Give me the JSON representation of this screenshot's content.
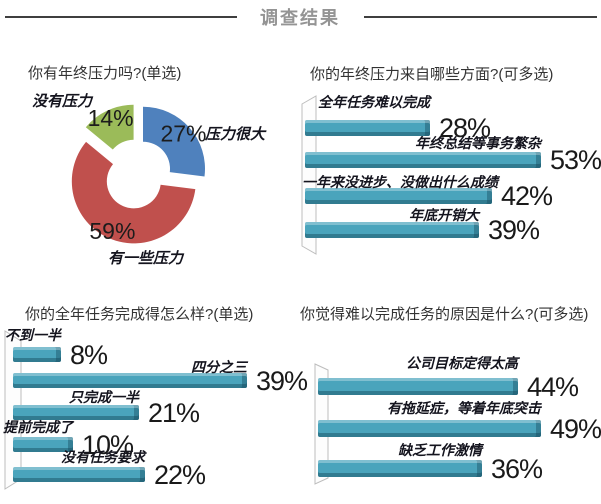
{
  "header": {
    "title": "调查结果"
  },
  "chart_data": [
    {
      "id": "q1",
      "type": "pie",
      "donut": true,
      "title": "你有年终压力吗?(单选)",
      "unit": "%",
      "legend_position": "around",
      "slices": [
        {
          "label": "压力很大",
          "value": 27,
          "color": "#4F81BD"
        },
        {
          "label": "有一些压力",
          "value": 59,
          "color": "#C0504D"
        },
        {
          "label": "没有压力",
          "value": 14,
          "color": "#9BBB59"
        }
      ]
    },
    {
      "id": "q2",
      "type": "bar",
      "orientation": "horizontal",
      "title": "你的年终压力来自哪些方面?(可多选)",
      "unit": "%",
      "bar_color": "#4AA4BC",
      "grid": false,
      "categories": [
        "全年任务难以完成",
        "年终总结等事务繁杂",
        "一年来没进步、没做出什么成绩",
        "年底开销大"
      ],
      "values": [
        28,
        53,
        42,
        39
      ]
    },
    {
      "id": "q3",
      "type": "bar",
      "orientation": "horizontal",
      "title": "你的全年任务完成得怎么样?(单选)",
      "unit": "%",
      "bar_color": "#4AA4BC",
      "grid": false,
      "categories": [
        "不到一半",
        "四分之三",
        "只完成一半",
        "提前完成了",
        "没有任务要求"
      ],
      "values": [
        8,
        39,
        21,
        10,
        22
      ]
    },
    {
      "id": "q4",
      "type": "bar",
      "orientation": "horizontal",
      "title": "你觉得难以完成任务的原因是什么?(可多选)",
      "unit": "%",
      "bar_color": "#4AA4BC",
      "grid": false,
      "categories": [
        "公司目标定得太高",
        "有拖延症，等着年底突击",
        "缺乏工作激情"
      ],
      "values": [
        44,
        49,
        36
      ]
    }
  ],
  "colors": {
    "bar_main": "#4AA4BC",
    "bar_dark": "#2D7D94",
    "bar_light": "#7BC0D0",
    "pie_blue": "#4F81BD",
    "pie_red": "#C0504D",
    "pie_green": "#9BBB59",
    "divider": "#3F3F3F",
    "header_text": "#949494",
    "title_text": "#333333"
  }
}
